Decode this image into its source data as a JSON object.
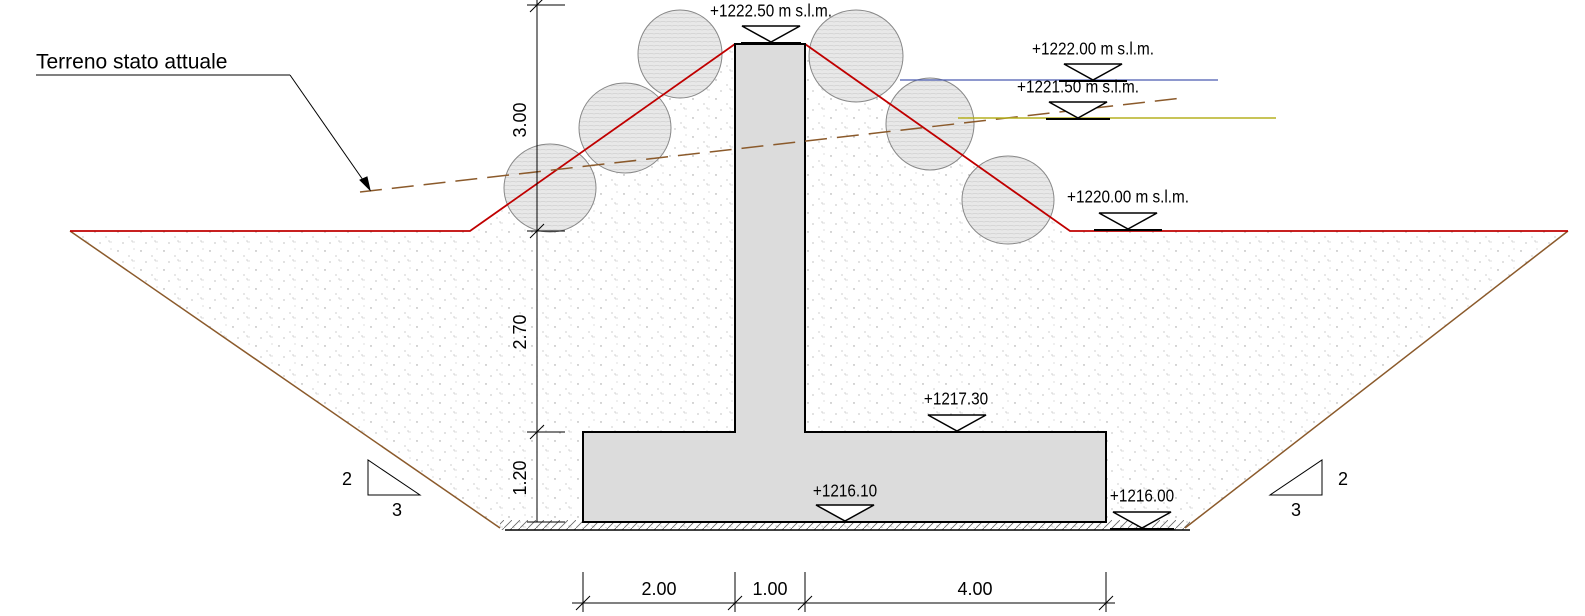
{
  "label": {
    "text": "Terreno stato attuale"
  },
  "elevations": [
    "+1222.50 m s.l.m.",
    "+1222.00 m s.l.m.",
    "+1221.50 m s.l.m.",
    "+1220.00 m s.l.m.",
    "+1217.30",
    "+1216.10",
    "+1216.00"
  ],
  "vertical_dimensions": [
    "3.00",
    "2.70",
    "1.20"
  ],
  "horizontal_dimensions": [
    "2.00",
    "1.00",
    "4.00"
  ],
  "slopes": [
    {
      "rise": "2",
      "run": "3"
    },
    {
      "rise": "2",
      "run": "3"
    }
  ]
}
